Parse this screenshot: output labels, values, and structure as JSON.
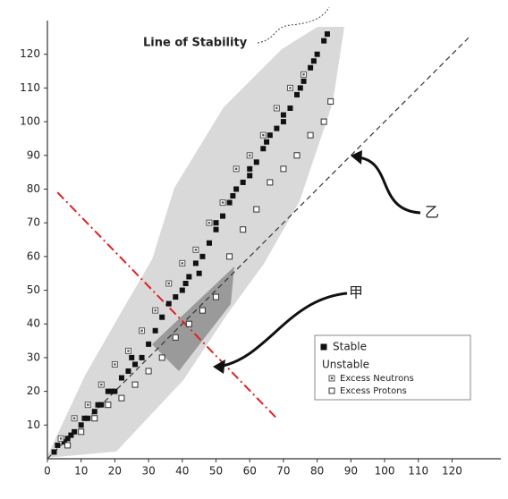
{
  "chart_data": {
    "type": "scatter",
    "xlim": [
      0,
      135
    ],
    "ylim": [
      0,
      130
    ],
    "xticks": [
      0,
      10,
      20,
      30,
      40,
      50,
      60,
      70,
      80,
      90,
      100,
      110,
      120
    ],
    "yticks": [
      10,
      20,
      30,
      40,
      50,
      60,
      70,
      80,
      90,
      100,
      110,
      120
    ],
    "series": [
      {
        "name": "Stable",
        "color": "#111111",
        "marker": "filled",
        "x": [
          2,
          3,
          5,
          6,
          7,
          8,
          10,
          11,
          12,
          14,
          15,
          16,
          18,
          19,
          20,
          22,
          24,
          25,
          26,
          28,
          30,
          32,
          34,
          36,
          38,
          40,
          41,
          42,
          44,
          45,
          46,
          48,
          50,
          50,
          52,
          54,
          55,
          56,
          58,
          60,
          60,
          62,
          64,
          65,
          66,
          68,
          70,
          70,
          72,
          74,
          75,
          76,
          78,
          79,
          80,
          82,
          83
        ],
        "y": [
          2,
          4,
          5,
          6,
          7,
          8,
          10,
          12,
          12,
          14,
          16,
          16,
          20,
          20,
          20,
          24,
          26,
          30,
          28,
          30,
          34,
          38,
          42,
          46,
          48,
          50,
          52,
          54,
          58,
          55,
          60,
          64,
          68,
          70,
          72,
          76,
          78,
          80,
          82,
          86,
          84,
          88,
          92,
          94,
          96,
          98,
          102,
          100,
          104,
          108,
          110,
          112,
          116,
          118,
          120,
          124,
          126
        ]
      },
      {
        "name": "Excess Neutrons",
        "color": "#555555",
        "marker": "dotted",
        "x": [
          4,
          8,
          12,
          16,
          20,
          24,
          28,
          32,
          36,
          40,
          44,
          48,
          52,
          56,
          60,
          64,
          68,
          72,
          76
        ],
        "y": [
          6,
          12,
          16,
          22,
          28,
          32,
          38,
          44,
          52,
          58,
          62,
          70,
          76,
          86,
          90,
          96,
          104,
          110,
          114
        ]
      },
      {
        "name": "Excess Protons",
        "color": "#333333",
        "marker": "open",
        "x": [
          6,
          10,
          14,
          18,
          22,
          26,
          30,
          34,
          38,
          42,
          46,
          50,
          54,
          58,
          62,
          66,
          70,
          74,
          78,
          82,
          84
        ],
        "y": [
          4,
          8,
          12,
          16,
          18,
          22,
          26,
          30,
          36,
          40,
          44,
          48,
          60,
          68,
          74,
          82,
          86,
          90,
          96,
          100,
          106
        ]
      }
    ],
    "legend_heading": "Unstable",
    "lines": [
      {
        "x": [
          0,
          125
        ],
        "y": [
          0,
          125
        ],
        "style": "dashed",
        "color": "#333333"
      },
      {
        "x": [
          3,
          68
        ],
        "y": [
          79,
          12
        ],
        "style": "dashdot",
        "color": "#e02020"
      }
    ],
    "annotations": [
      "Line of Stability",
      "甲",
      "乙"
    ]
  }
}
